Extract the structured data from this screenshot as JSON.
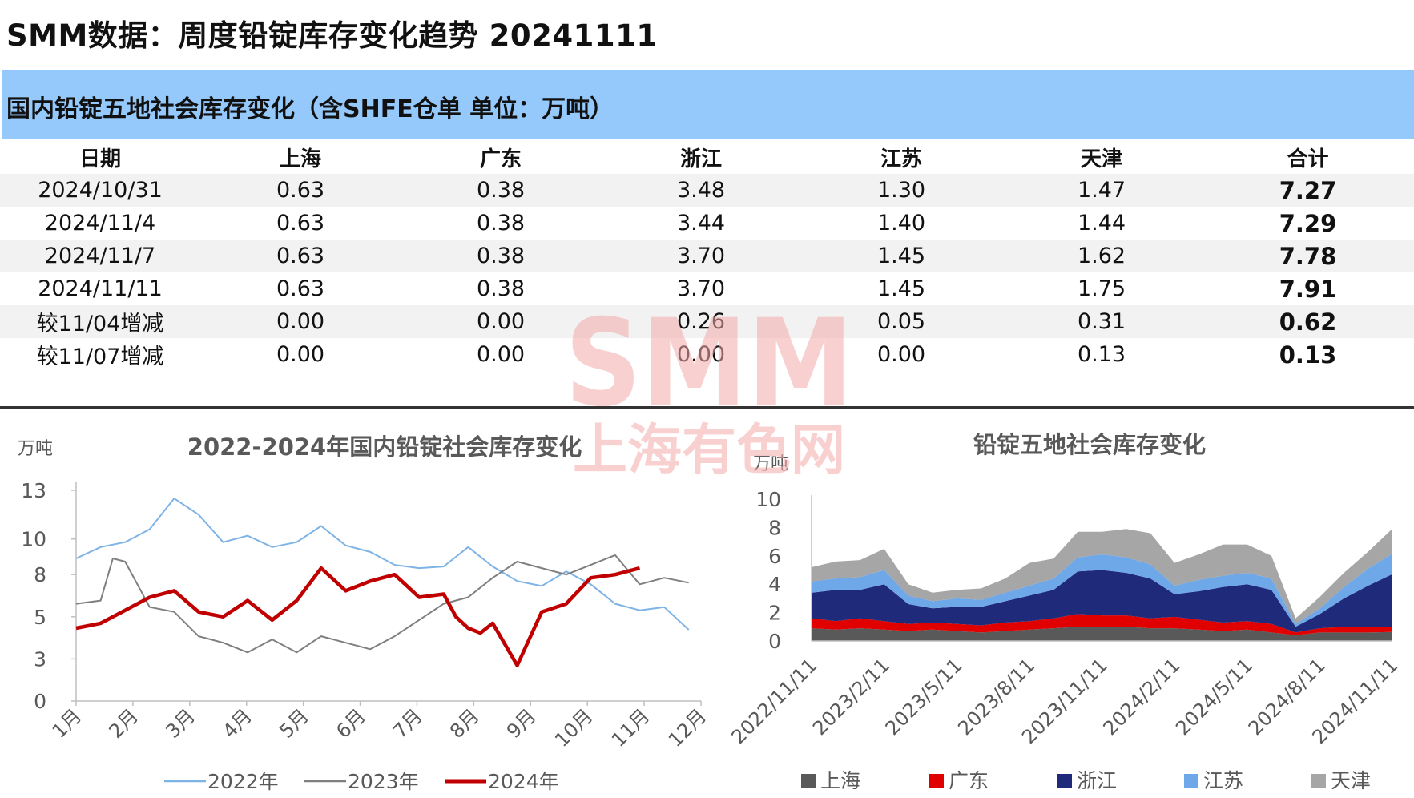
{
  "page_title": "SMM数据：周度铅锭库存变化趋势 20241111",
  "table_section": {
    "title": "国内铅锭五地社会库存变化（含SHFE仓单 单位：万吨）",
    "headers": [
      "日期",
      "上海",
      "广东",
      "浙江",
      "江苏",
      "天津",
      "合计"
    ],
    "rows": [
      [
        "2024/10/31",
        "0.63",
        "0.38",
        "3.48",
        "1.30",
        "1.47",
        "7.27"
      ],
      [
        "2024/11/4",
        "0.63",
        "0.38",
        "3.44",
        "1.40",
        "1.44",
        "7.29"
      ],
      [
        "2024/11/7",
        "0.63",
        "0.38",
        "3.70",
        "1.45",
        "1.62",
        "7.78"
      ],
      [
        "2024/11/11",
        "0.63",
        "0.38",
        "3.70",
        "1.45",
        "1.75",
        "7.91"
      ],
      [
        "较11/04增减",
        "0.00",
        "0.00",
        "0.26",
        "0.05",
        "0.31",
        "0.62"
      ],
      [
        "较11/07增减",
        "0.00",
        "0.00",
        "0.00",
        "0.00",
        "0.13",
        "0.13"
      ]
    ]
  },
  "watermark": {
    "brand": "SMM",
    "cn": "上海有色网"
  },
  "chart_data": [
    {
      "type": "line",
      "title": "2022-2024年国内铅锭社会库存变化",
      "ylabel": "万吨",
      "ylim": [
        0,
        13
      ],
      "y_ticks": [
        "13",
        "10",
        "8",
        "5",
        "3",
        "0"
      ],
      "x_ticks": [
        "1月",
        "2月",
        "3月",
        "4月",
        "5月",
        "6月",
        "7月",
        "8月",
        "9月",
        "10月",
        "11月",
        "12月"
      ],
      "x_unit": "week",
      "legend": "bottom",
      "series": [
        {
          "name": "2022年",
          "color": "#7EB3E6",
          "x": [
            1,
            3,
            5,
            7,
            9,
            11,
            13,
            15,
            17,
            19,
            21,
            23,
            25,
            27,
            29,
            31,
            33,
            35,
            37,
            39,
            41,
            43,
            45,
            47,
            49,
            51
          ],
          "values": [
            8.8,
            9.5,
            9.8,
            10.6,
            12.5,
            11.5,
            9.8,
            10.2,
            9.5,
            9.8,
            10.8,
            9.6,
            9.2,
            8.4,
            8.2,
            8.3,
            9.5,
            8.3,
            7.4,
            7.1,
            8.0,
            7.2,
            6.0,
            5.6,
            5.8,
            4.4
          ]
        },
        {
          "name": "2023年",
          "color": "#7F7F7F",
          "x": [
            1,
            3,
            4,
            5,
            7,
            9,
            11,
            13,
            15,
            17,
            19,
            21,
            23,
            25,
            27,
            29,
            31,
            33,
            35,
            37,
            39,
            41,
            43,
            45,
            47,
            49,
            51
          ],
          "values": [
            6.0,
            6.2,
            8.8,
            8.6,
            5.8,
            5.5,
            4.0,
            3.6,
            3.0,
            3.8,
            3.0,
            4.0,
            3.6,
            3.2,
            4.0,
            5.0,
            6.0,
            6.4,
            7.6,
            8.6,
            8.2,
            7.8,
            8.4,
            9.0,
            7.2,
            7.6,
            7.3
          ]
        },
        {
          "name": "2024年",
          "color": "#C00000",
          "x": [
            1,
            3,
            5,
            7,
            9,
            11,
            13,
            15,
            17,
            19,
            21,
            23,
            25,
            27,
            29,
            31,
            32,
            33,
            34,
            35,
            37,
            39,
            41,
            43,
            45,
            47
          ],
          "values": [
            4.5,
            4.8,
            5.6,
            6.4,
            6.8,
            5.5,
            5.2,
            6.2,
            5.0,
            6.2,
            8.2,
            6.8,
            7.4,
            7.8,
            6.4,
            6.6,
            5.2,
            4.5,
            4.2,
            4.8,
            2.2,
            5.5,
            6.0,
            7.6,
            7.8,
            8.2
          ]
        }
      ]
    },
    {
      "type": "area",
      "stacked": true,
      "title": "铅锭五地社会库存变化",
      "ylabel": "万吨",
      "ylim": [
        0,
        10
      ],
      "y_ticks": [
        "10",
        "8",
        "6",
        "4",
        "2",
        "0"
      ],
      "x_ticks": [
        "2022/11/11",
        "2023/2/11",
        "2023/5/11",
        "2023/8/11",
        "2023/11/11",
        "2024/2/11",
        "2024/5/11",
        "2024/8/11",
        "2024/11/11"
      ],
      "legend": "bottom",
      "series": [
        {
          "name": "上海",
          "color": "#595959",
          "values": [
            0.9,
            0.8,
            0.9,
            0.8,
            0.7,
            0.8,
            0.7,
            0.6,
            0.7,
            0.8,
            0.9,
            1.0,
            1.0,
            1.0,
            0.9,
            0.9,
            0.8,
            0.7,
            0.8,
            0.6,
            0.4,
            0.6,
            0.6,
            0.6,
            0.63
          ]
        },
        {
          "name": "广东",
          "color": "#E00000",
          "values": [
            0.7,
            0.6,
            0.7,
            0.6,
            0.5,
            0.5,
            0.5,
            0.5,
            0.6,
            0.6,
            0.7,
            0.9,
            0.8,
            0.8,
            0.7,
            0.8,
            0.7,
            0.6,
            0.6,
            0.6,
            0.2,
            0.3,
            0.4,
            0.4,
            0.38
          ]
        },
        {
          "name": "浙江",
          "color": "#1F2A7A",
          "values": [
            1.8,
            2.2,
            2.0,
            2.6,
            1.4,
            1.0,
            1.2,
            1.3,
            1.5,
            1.8,
            2.0,
            3.0,
            3.2,
            3.0,
            2.8,
            1.6,
            2.0,
            2.5,
            2.6,
            2.4,
            0.4,
            1.0,
            2.0,
            2.9,
            3.7
          ]
        },
        {
          "name": "江苏",
          "color": "#6FA8E8",
          "values": [
            0.8,
            0.8,
            0.9,
            1.0,
            0.6,
            0.5,
            0.6,
            0.5,
            0.6,
            0.7,
            0.8,
            1.0,
            1.1,
            1.1,
            1.0,
            0.6,
            0.8,
            0.8,
            0.8,
            0.8,
            0.2,
            0.4,
            0.8,
            1.2,
            1.45
          ]
        },
        {
          "name": "天津",
          "color": "#A6A6A6",
          "values": [
            1.0,
            1.2,
            1.2,
            1.5,
            0.8,
            0.6,
            0.6,
            0.8,
            1.0,
            1.6,
            1.4,
            1.8,
            1.6,
            2.0,
            2.2,
            1.6,
            1.8,
            2.2,
            2.0,
            1.6,
            0.4,
            0.8,
            1.0,
            1.2,
            1.75
          ]
        }
      ]
    }
  ]
}
